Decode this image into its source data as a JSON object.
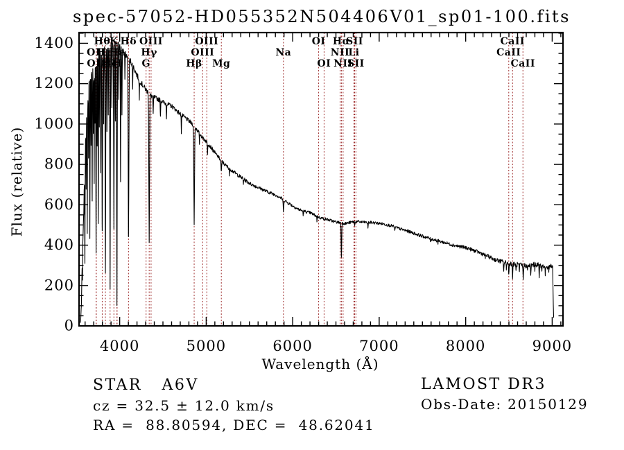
{
  "title": "spec-57052-HD055352N504406V01_sp01-100.fits",
  "annotations": {
    "class_label": "STAR   A6V",
    "cz": "cz = 32.5 ± 12.0 km/s",
    "radec": "RA =  88.80594, DEC =  48.62041",
    "survey": "LAMOST DR3",
    "obs_date": "Obs-Date: 20150129"
  },
  "chart_data": {
    "type": "line",
    "title": "spec-57052-HD055352N504406V01_sp01-100.fits",
    "xlabel": "Wavelength (Å)",
    "ylabel": "Flux (relative)",
    "xlim": [
      3530,
      9125
    ],
    "ylim": [
      0,
      1453
    ],
    "grid": false,
    "legend": false,
    "x_major_ticks": [
      4000,
      5000,
      6000,
      7000,
      8000,
      9000
    ],
    "x_minor_step": 100,
    "y_major_ticks": [
      0,
      200,
      400,
      600,
      800,
      1000,
      1200,
      1400
    ],
    "y_minor_step": 50,
    "spectrum_color": "#000000",
    "marker_line_color": "#a03030",
    "marker_label_rows_y": [
      64,
      80,
      96
    ],
    "series": [
      {
        "name": "spectrum",
        "continuum_points": [
          [
            3545,
            10
          ],
          [
            3552,
            60
          ],
          [
            3560,
            180
          ],
          [
            3572,
            380
          ],
          [
            3585,
            620
          ],
          [
            3600,
            850
          ],
          [
            3615,
            1020
          ],
          [
            3632,
            1130
          ],
          [
            3650,
            1210
          ],
          [
            3670,
            1260
          ],
          [
            3695,
            1300
          ],
          [
            3720,
            1330
          ],
          [
            3750,
            1350
          ],
          [
            3785,
            1365
          ],
          [
            3820,
            1372
          ],
          [
            3860,
            1378
          ],
          [
            3900,
            1386
          ],
          [
            3940,
            1394
          ],
          [
            3975,
            1400
          ],
          [
            4000,
            1392
          ],
          [
            4030,
            1368
          ],
          [
            4060,
            1348
          ],
          [
            4090,
            1336
          ],
          [
            4130,
            1308
          ],
          [
            4170,
            1272
          ],
          [
            4210,
            1232
          ],
          [
            4260,
            1196
          ],
          [
            4310,
            1166
          ],
          [
            4360,
            1142
          ],
          [
            4410,
            1130
          ],
          [
            4460,
            1120
          ],
          [
            4510,
            1106
          ],
          [
            4560,
            1096
          ],
          [
            4610,
            1086
          ],
          [
            4660,
            1066
          ],
          [
            4710,
            1046
          ],
          [
            4760,
            1030
          ],
          [
            4810,
            1012
          ],
          [
            4860,
            992
          ],
          [
            4910,
            962
          ],
          [
            4960,
            932
          ],
          [
            5010,
            910
          ],
          [
            5060,
            882
          ],
          [
            5110,
            852
          ],
          [
            5160,
            826
          ],
          [
            5210,
            801
          ],
          [
            5260,
            783
          ],
          [
            5310,
            766
          ],
          [
            5360,
            749
          ],
          [
            5410,
            734
          ],
          [
            5460,
            719
          ],
          [
            5510,
            704
          ],
          [
            5560,
            694
          ],
          [
            5610,
            684
          ],
          [
            5660,
            674
          ],
          [
            5710,
            664
          ],
          [
            5760,
            656
          ],
          [
            5810,
            648
          ],
          [
            5860,
            635
          ],
          [
            5910,
            620
          ],
          [
            5960,
            606
          ],
          [
            6010,
            592
          ],
          [
            6060,
            579
          ],
          [
            6110,
            570
          ],
          [
            6160,
            565
          ],
          [
            6210,
            559
          ],
          [
            6260,
            547
          ],
          [
            6310,
            537
          ],
          [
            6360,
            531
          ],
          [
            6410,
            526
          ],
          [
            6460,
            519
          ],
          [
            6510,
            514
          ],
          [
            6560,
            511
          ],
          [
            6610,
            507
          ],
          [
            6660,
            512
          ],
          [
            6710,
            516
          ],
          [
            6760,
            516
          ],
          [
            6810,
            514
          ],
          [
            6860,
            512
          ],
          [
            6910,
            512
          ],
          [
            6960,
            510
          ],
          [
            7010,
            507
          ],
          [
            7060,
            504
          ],
          [
            7110,
            499
          ],
          [
            7160,
            494
          ],
          [
            7210,
            485
          ],
          [
            7260,
            478
          ],
          [
            7310,
            472
          ],
          [
            7360,
            465
          ],
          [
            7410,
            458
          ],
          [
            7460,
            450
          ],
          [
            7510,
            443
          ],
          [
            7560,
            437
          ],
          [
            7610,
            430
          ],
          [
            7660,
            424
          ],
          [
            7710,
            418
          ],
          [
            7760,
            412
          ],
          [
            7810,
            406
          ],
          [
            7860,
            400
          ],
          [
            7910,
            395
          ],
          [
            7960,
            391
          ],
          [
            8010,
            387
          ],
          [
            8060,
            379
          ],
          [
            8110,
            371
          ],
          [
            8160,
            363
          ],
          [
            8210,
            354
          ],
          [
            8260,
            344
          ],
          [
            8310,
            333
          ],
          [
            8360,
            325
          ],
          [
            8410,
            319
          ],
          [
            8460,
            314
          ],
          [
            8510,
            309
          ],
          [
            8560,
            305
          ],
          [
            8610,
            303
          ],
          [
            8660,
            300
          ],
          [
            8710,
            298
          ],
          [
            8760,
            301
          ],
          [
            8810,
            305
          ],
          [
            8860,
            300
          ],
          [
            8910,
            296
          ],
          [
            8955,
            293
          ],
          [
            8990,
            298
          ],
          [
            9000,
            300
          ],
          [
            9006,
            290
          ],
          [
            9012,
            120
          ],
          [
            9018,
            20
          ]
        ],
        "absorption_dips": [
          [
            3555,
            4,
            60
          ],
          [
            3570,
            3,
            250
          ],
          [
            3583,
            3,
            520
          ],
          [
            3598,
            4,
            300
          ],
          [
            3612,
            3,
            700
          ],
          [
            3625,
            4,
            480
          ],
          [
            3640,
            3,
            820
          ],
          [
            3655,
            4,
            420
          ],
          [
            3669,
            3,
            900
          ],
          [
            3682,
            4,
            600
          ],
          [
            3695,
            3,
            950
          ],
          [
            3705,
            4,
            700
          ],
          [
            3714,
            3,
            1000
          ],
          [
            3727,
            5,
            380
          ],
          [
            3740,
            3,
            900
          ],
          [
            3752,
            4,
            520
          ],
          [
            3765,
            3,
            980
          ],
          [
            3782,
            4,
            750
          ],
          [
            3798,
            6,
            480
          ],
          [
            3815,
            3,
            1000
          ],
          [
            3835,
            6,
            280
          ],
          [
            3852,
            3,
            950
          ],
          [
            3868,
            3,
            1050
          ],
          [
            3889,
            6,
            180
          ],
          [
            3910,
            3,
            1080
          ],
          [
            3933,
            6,
            480
          ],
          [
            3950,
            3,
            1020
          ],
          [
            3968,
            6,
            110
          ],
          [
            3990,
            3,
            1120
          ],
          [
            4010,
            4,
            700
          ],
          [
            4026,
            4,
            1050
          ],
          [
            4060,
            3,
            1220
          ],
          [
            4102,
            8,
            430
          ],
          [
            4150,
            3,
            1170
          ],
          [
            4227,
            3,
            1120
          ],
          [
            4341,
            8,
            420
          ],
          [
            4387,
            4,
            1040
          ],
          [
            4471,
            4,
            1040
          ],
          [
            4540,
            3,
            1030
          ],
          [
            4713,
            3,
            960
          ],
          [
            4861,
            8,
            508
          ],
          [
            4922,
            4,
            905
          ],
          [
            5015,
            4,
            855
          ],
          [
            5175,
            7,
            765
          ],
          [
            5269,
            4,
            745
          ],
          [
            5430,
            3,
            700
          ],
          [
            5893,
            6,
            562
          ],
          [
            6122,
            4,
            548
          ],
          [
            6280,
            3,
            518
          ],
          [
            6563,
            6,
            340
          ],
          [
            6717,
            3,
            498
          ],
          [
            6870,
            5,
            488
          ],
          [
            7180,
            4,
            468
          ],
          [
            7594,
            6,
            420
          ],
          [
            7680,
            4,
            408
          ],
          [
            8227,
            4,
            338
          ],
          [
            8440,
            5,
            275
          ],
          [
            8470,
            4,
            286
          ],
          [
            8498,
            5,
            252
          ],
          [
            8542,
            5,
            240
          ],
          [
            8582,
            4,
            268
          ],
          [
            8620,
            4,
            262
          ],
          [
            8665,
            6,
            230
          ],
          [
            8715,
            4,
            268
          ],
          [
            8752,
            5,
            248
          ],
          [
            8800,
            4,
            282
          ],
          [
            8850,
            5,
            243
          ],
          [
            8880,
            4,
            270
          ],
          [
            8920,
            5,
            255
          ],
          [
            8962,
            4,
            272
          ]
        ],
        "noise_amplitude_points": [
          [
            3545,
            28
          ],
          [
            3700,
            24
          ],
          [
            3900,
            18
          ],
          [
            4100,
            15
          ],
          [
            4400,
            12
          ],
          [
            4800,
            10
          ],
          [
            5300,
            9
          ],
          [
            5900,
            8
          ],
          [
            6563,
            7
          ],
          [
            7100,
            7
          ],
          [
            7600,
            8
          ],
          [
            8100,
            9
          ],
          [
            8400,
            11
          ],
          [
            8700,
            13
          ],
          [
            9000,
            12
          ]
        ]
      }
    ],
    "spectral_line_markers": [
      {
        "wavelength": 3727,
        "label": "OII",
        "row": 2
      },
      {
        "wavelength": 3729,
        "label": "OII",
        "row": 3
      },
      {
        "wavelength": 3798,
        "label": "Hθ",
        "row": 1
      },
      {
        "wavelength": 3835,
        "label": "Hη",
        "row": 2
      },
      {
        "wavelength": 3889,
        "label": "Hζ",
        "row": 3
      },
      {
        "wavelength": 3933,
        "label": "K",
        "row": 1
      },
      {
        "wavelength": 3968,
        "label": "H",
        "row": 3
      },
      {
        "wavelength": 3970,
        "label": "Hε",
        "row": 2
      },
      {
        "wavelength": 4102,
        "label": "Hδ",
        "row": 1
      },
      {
        "wavelength": 4305,
        "label": "G",
        "row": 3
      },
      {
        "wavelength": 4341,
        "label": "Hγ",
        "row": 2
      },
      {
        "wavelength": 4363,
        "label": "OIII",
        "row": 1
      },
      {
        "wavelength": 4861,
        "label": "Hβ",
        "row": 3
      },
      {
        "wavelength": 4959,
        "label": "OIII",
        "row": 2
      },
      {
        "wavelength": 5007,
        "label": "OIII",
        "row": 1
      },
      {
        "wavelength": 5175,
        "label": "Mg",
        "row": 3
      },
      {
        "wavelength": 5893,
        "label": "Na",
        "row": 2
      },
      {
        "wavelength": 6300,
        "label": "OI",
        "row": 1
      },
      {
        "wavelength": 6363,
        "label": "OI",
        "row": 3
      },
      {
        "wavelength": 6548,
        "label": "NII",
        "row": 2
      },
      {
        "wavelength": 6563,
        "label": "Hα",
        "row": 1
      },
      {
        "wavelength": 6583,
        "label": "NII",
        "row": 3
      },
      {
        "wavelength": 6708,
        "label": "Li",
        "row": 2
      },
      {
        "wavelength": 6716,
        "label": "SII",
        "row": 1
      },
      {
        "wavelength": 6731,
        "label": "SII",
        "row": 3
      },
      {
        "wavelength": 8498,
        "label": "CaII",
        "row": 2
      },
      {
        "wavelength": 8542,
        "label": "CaII",
        "row": 1
      },
      {
        "wavelength": 8662,
        "label": "CaII",
        "row": 3
      }
    ]
  }
}
